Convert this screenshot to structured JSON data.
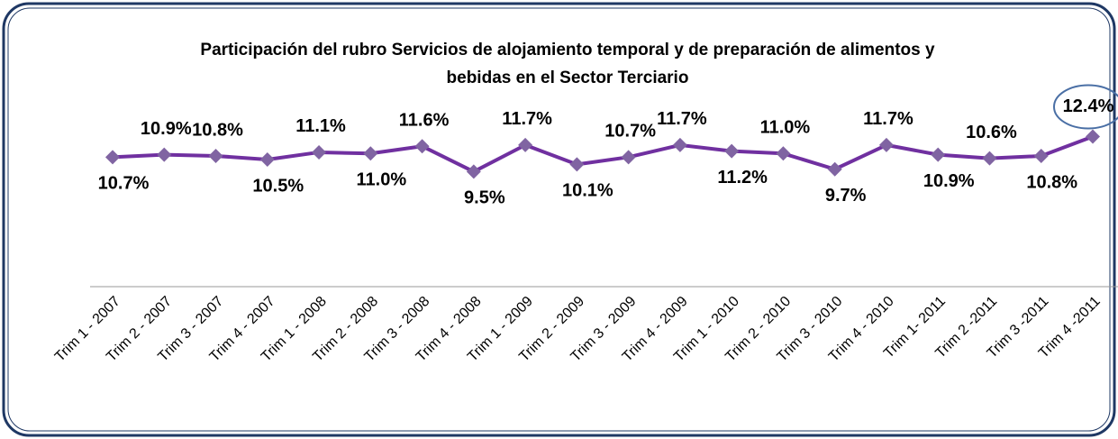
{
  "chart_data": {
    "type": "line",
    "title": "Participación del rubro Servicios de alojamiento temporal y de preparación de alimentos y bebidas en el Sector Terciario",
    "categories": [
      "Trim 1 - 2007",
      "Trim 2 - 2007",
      "Trim 3 - 2007",
      "Trim 4 - 2007",
      "Trim 1 - 2008",
      "Trim 2 - 2008",
      "Trim 3 - 2008",
      "Trim 4 - 2008",
      "Trim 1 - 2009",
      "Trim 2 - 2009",
      "Trim 3 - 2009",
      "Trim 4 - 2009",
      "Trim 1 - 2010",
      "Trim 2 - 2010",
      "Trim 3 - 2010",
      "Trim 4 - 2010",
      "Trim 1- 2011",
      "Trim 2 -2011",
      "Trim 3 -2011",
      "Trim 4 -2011"
    ],
    "values": [
      10.7,
      10.9,
      10.8,
      10.5,
      11.1,
      11.0,
      11.6,
      9.5,
      11.7,
      10.1,
      10.7,
      11.7,
      11.2,
      11.0,
      9.7,
      11.7,
      10.9,
      10.6,
      10.8,
      12.4
    ],
    "value_labels": [
      "10.7%",
      "10.9%",
      "10.8%",
      "10.5%",
      "11.1%",
      "11.0%",
      "11.6%",
      "9.5%",
      "11.7%",
      "10.1%",
      "10.7%",
      "11.7%",
      "11.2%",
      "11.0%",
      "9.7%",
      "11.7%",
      "10.9%",
      "10.6%",
      "10.8%",
      "12.4%"
    ],
    "color": "#7030a0",
    "marker_color": "#8064a2",
    "ylim": [
      0,
      14
    ]
  }
}
